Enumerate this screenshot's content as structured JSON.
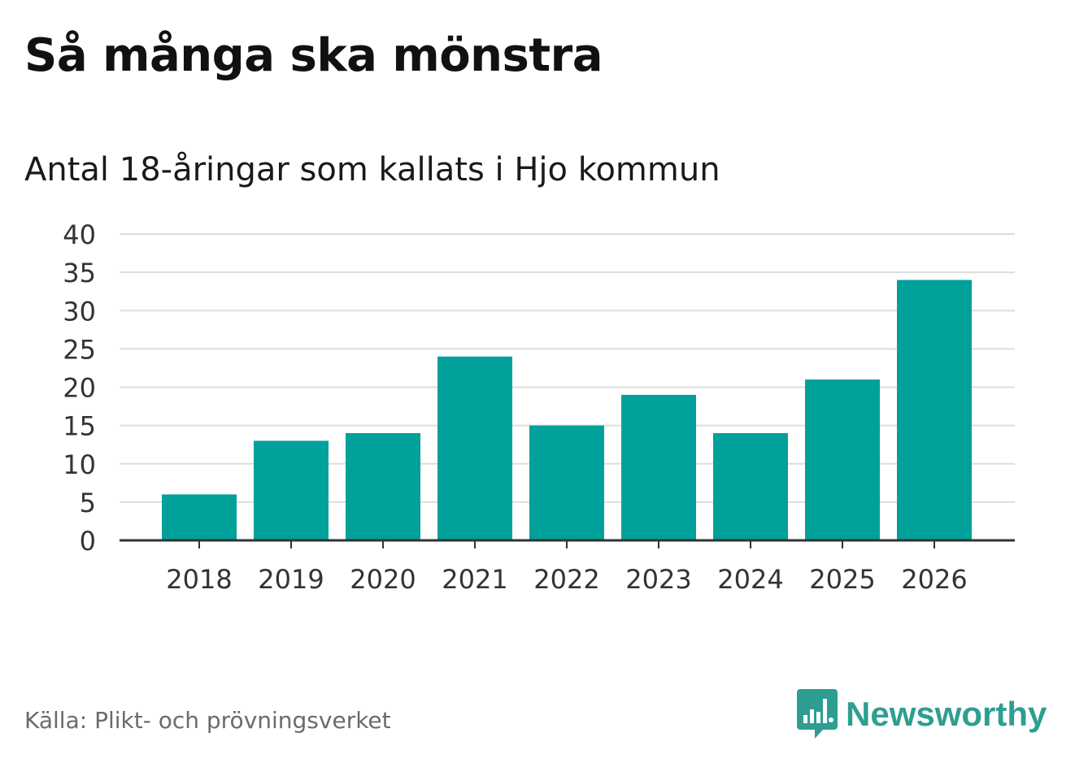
{
  "chart_data": {
    "type": "bar",
    "title": "Så många ska mönstra",
    "subtitle": "Antal 18-åringar som kallats i Hjo kommun",
    "categories": [
      "2018",
      "2019",
      "2020",
      "2021",
      "2022",
      "2023",
      "2024",
      "2025",
      "2026"
    ],
    "values": [
      6,
      13,
      14,
      24,
      15,
      19,
      14,
      21,
      34
    ],
    "xlabel": "",
    "ylabel": "",
    "ylim": [
      0,
      40
    ],
    "yticks": [
      0,
      5,
      10,
      15,
      20,
      25,
      30,
      35,
      40
    ],
    "grid": true,
    "legend": "none"
  },
  "footer": {
    "source": "Källa: Plikt- och prövningsverket",
    "brand_name": "Newsworthy"
  },
  "colors": {
    "bar": "#00a19a",
    "grid": "#dddddd",
    "axis": "#333333",
    "tick_text": "#333333",
    "brand": "#2e9e92"
  },
  "icons": {
    "brand_logo": "speech-bubble-bar-chart-icon"
  }
}
